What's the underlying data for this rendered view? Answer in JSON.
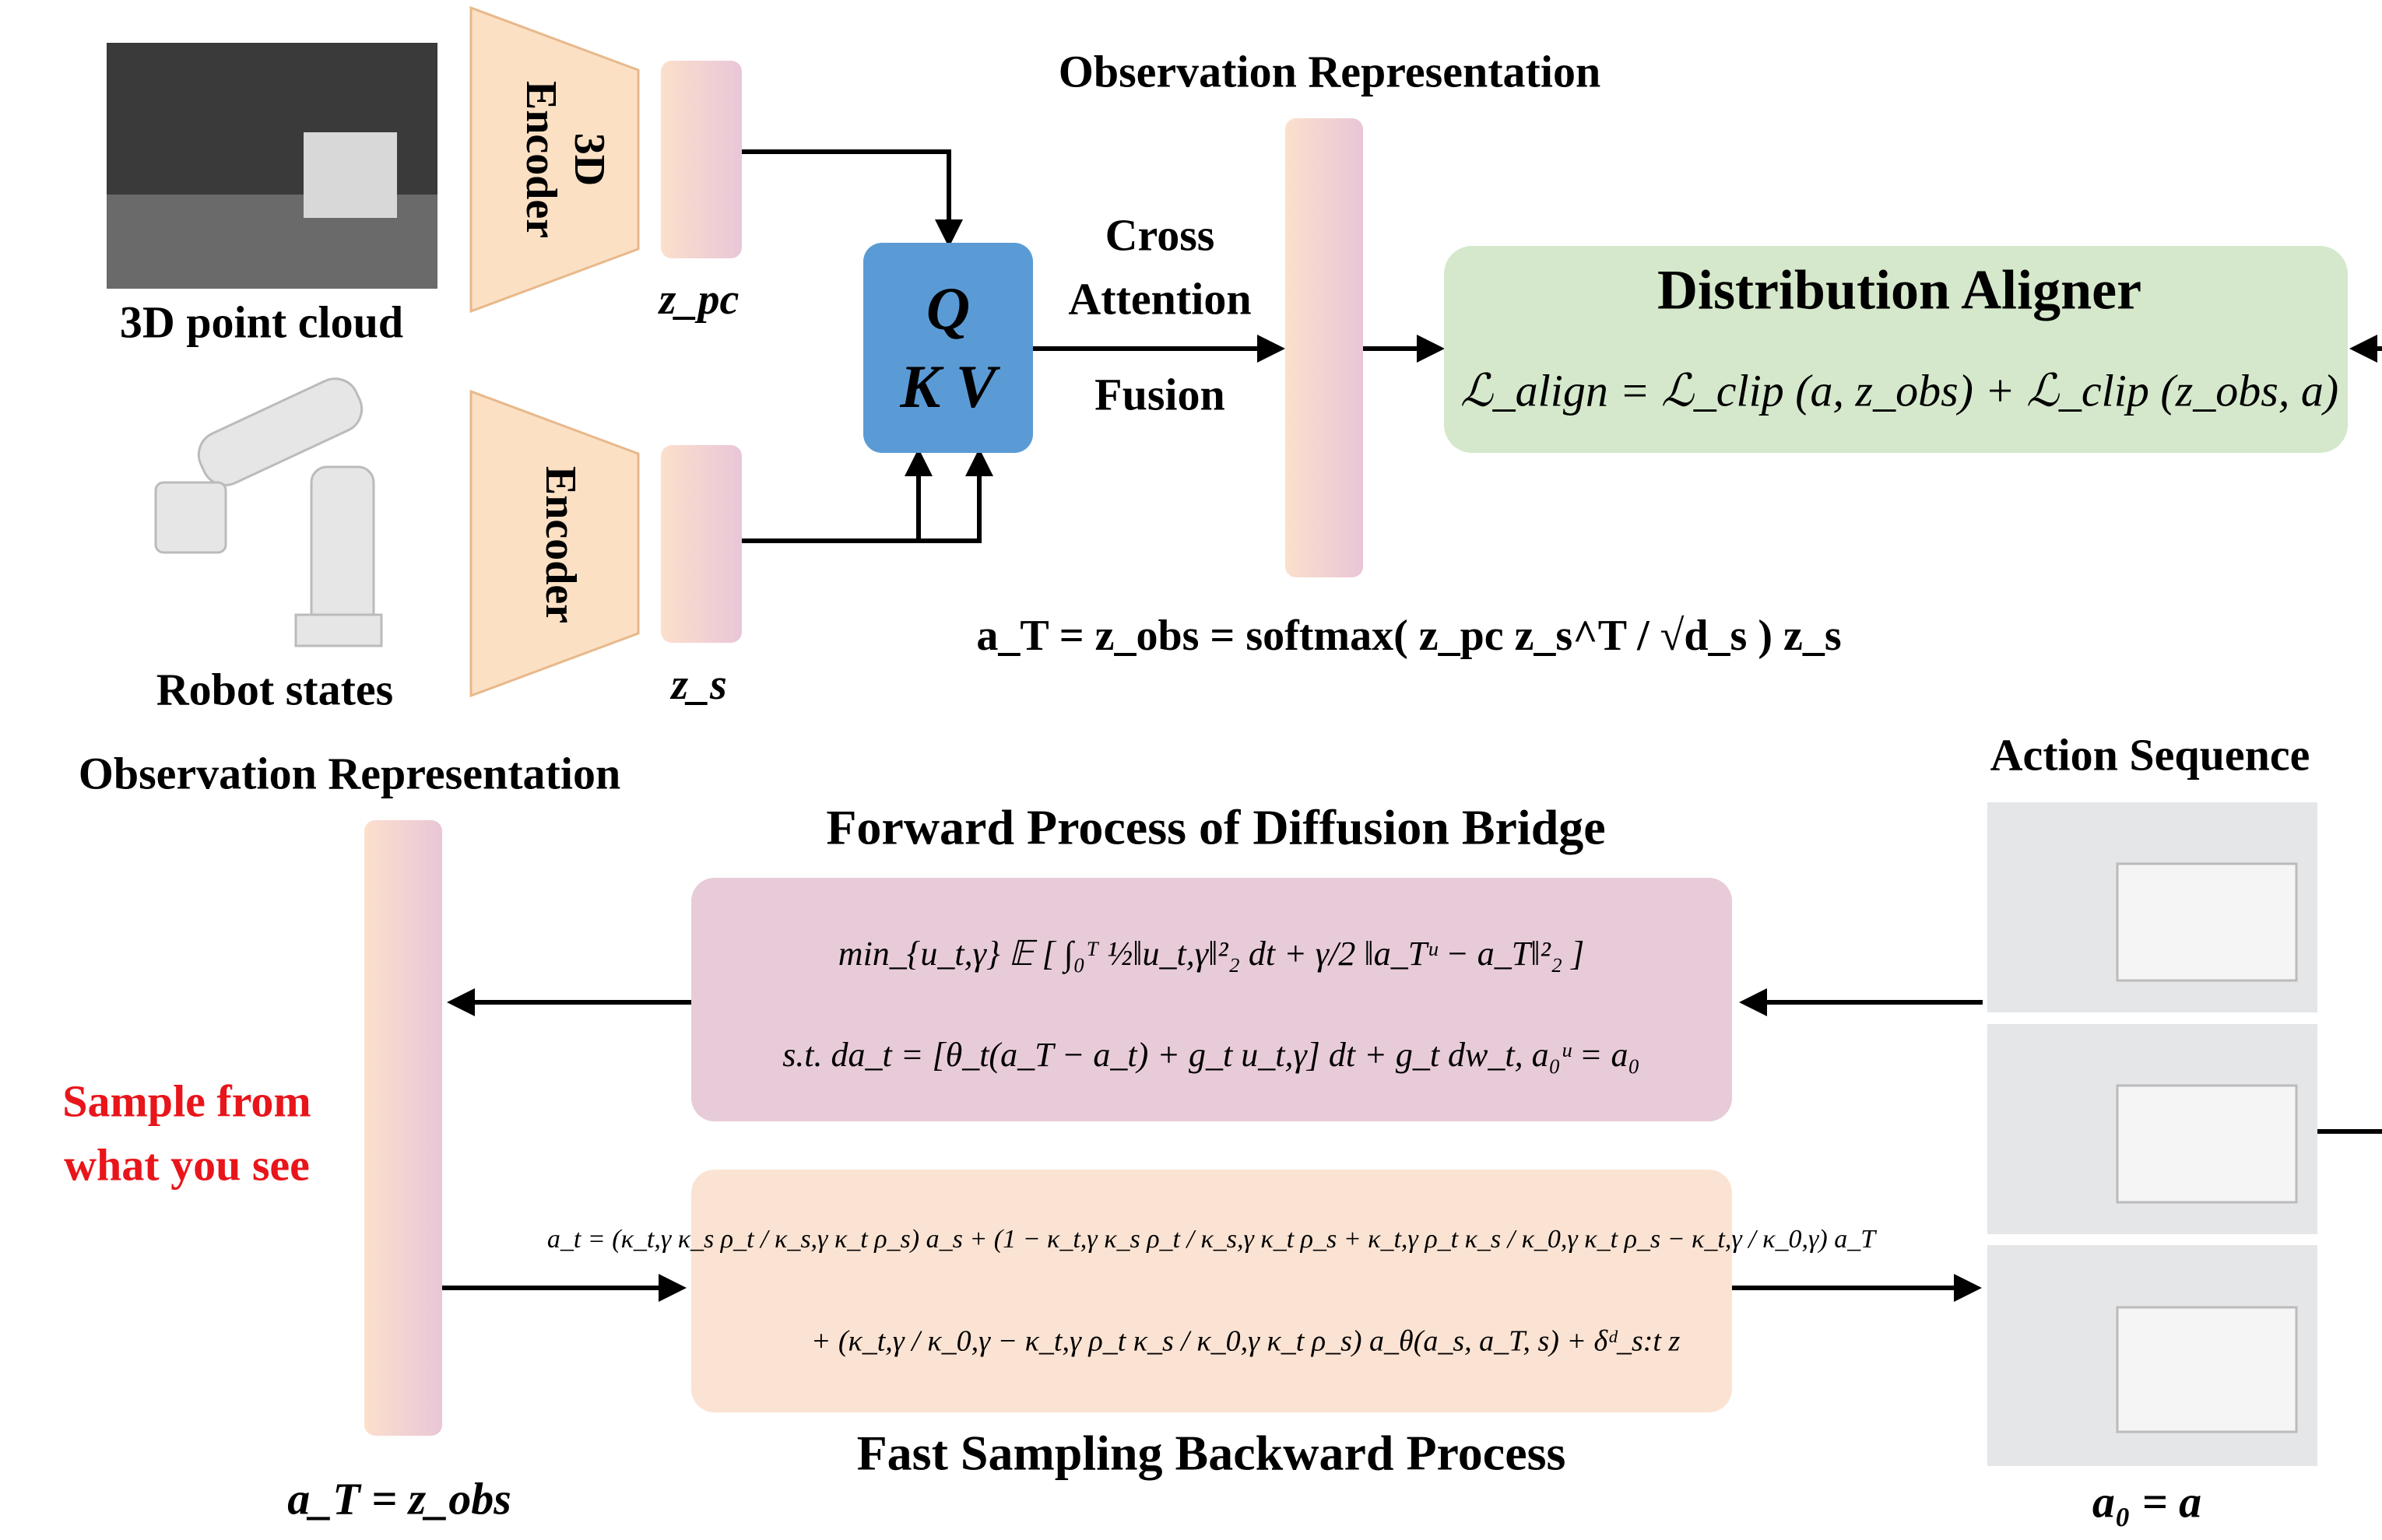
{
  "observation_encoding": {
    "point_cloud_label": "3D point cloud",
    "robot_states_label": "Robot states",
    "encoder_3d": [
      "3D",
      "Encoder"
    ],
    "encoder_state": "Encoder",
    "z_pc": "z_pc",
    "z_s": "z_s",
    "attention_box": [
      "Q",
      "K V"
    ],
    "cross_attention_label": [
      "Cross",
      "Attention",
      "Fusion"
    ],
    "representation_title": "Observation Representation",
    "fusion_formula": "a_T = z_obs = softmax( z_pc z_s^T / √d_s ) z_s"
  },
  "aligner": {
    "title": "Distribution Aligner",
    "formula": "ℒ_align = ℒ_clip (a, z_obs) + ℒ_clip (z_obs, a)"
  },
  "diffusion": {
    "representation_title": "Observation Representation",
    "slogan": [
      "Sample from",
      "what you see"
    ],
    "start_label": "a_T = z_obs",
    "forward_title": "Forward Process of Diffusion Bridge",
    "forward_formula": [
      "min_{u_t,γ} 𝔼 [ ∫₀ᵀ ½‖u_t,γ‖²₂ dt + γ/2 ‖a_Tᵘ − a_T‖²₂ ]",
      "s.t. da_t = [θ_t(a_T − a_t) + g_t u_t,γ] dt + g_t dw_t,  a₀ᵘ = a₀"
    ],
    "backward_formula": [
      "a_t = (κ_t,γ κ_s ρ_t / κ_s,γ κ_t ρ_s) a_s + (1 − κ_t,γ κ_s ρ_t / κ_s,γ κ_t ρ_s + κ_t,γ ρ_t κ_s / κ_0,γ κ_t ρ_s − κ_t,γ / κ_0,γ) a_T",
      "+ (κ_t,γ / κ_0,γ − κ_t,γ ρ_t κ_s / κ_0,γ κ_t ρ_s) a_θ(a_s, a_T, s) + δᵈ_s:t z"
    ],
    "backward_title": "Fast Sampling Backward Process",
    "action_title": "Action Sequence",
    "end_label": "a₀ = a"
  }
}
